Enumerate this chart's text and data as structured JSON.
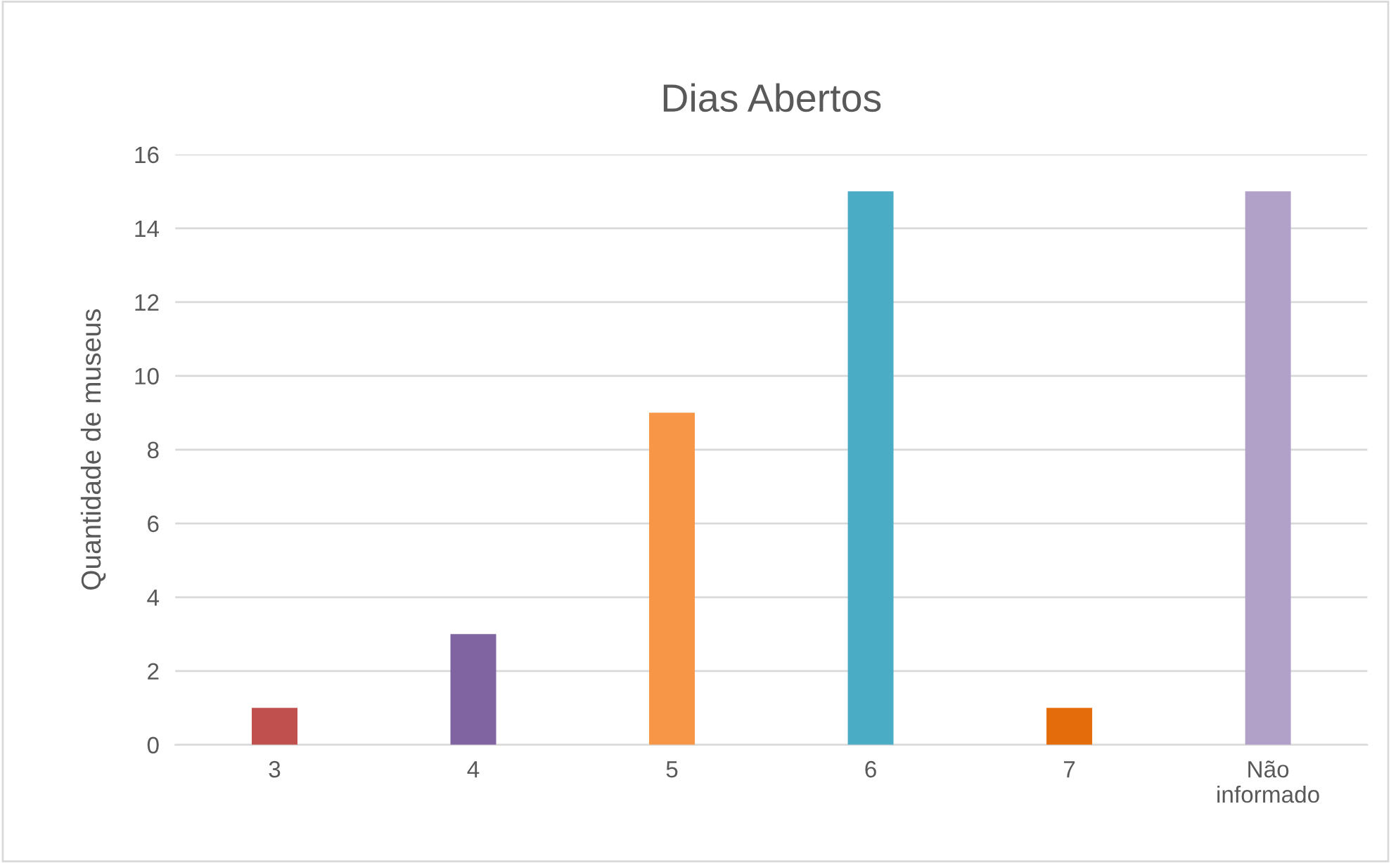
{
  "chart_data": {
    "type": "bar",
    "title": "Dias Abertos",
    "ylabel": "Quantidade de museus",
    "categories": [
      "3",
      "4",
      "5",
      "6",
      "7",
      "Não\ninformado"
    ],
    "values": [
      1,
      3,
      9,
      15,
      1,
      15
    ],
    "colors": [
      "#c0504d",
      "#8064a2",
      "#f79646",
      "#4bacc6",
      "#e46c0a",
      "#b1a0c7"
    ],
    "ylim": [
      0,
      16
    ],
    "yticks": [
      0,
      2,
      4,
      6,
      8,
      10,
      12,
      14,
      16
    ],
    "grid": "y"
  }
}
